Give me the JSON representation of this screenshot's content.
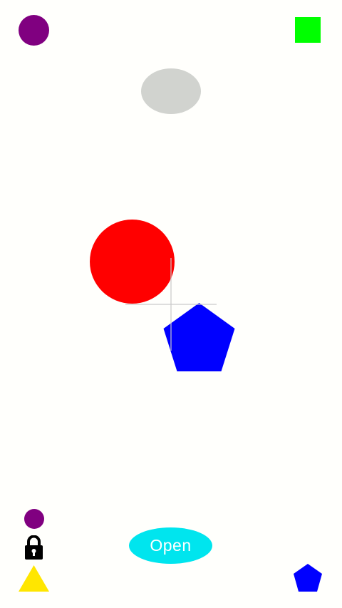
{
  "colors": {
    "background": "#fffffc",
    "purple": "#800080",
    "green": "#00ff00",
    "gray": "#d1d3cf",
    "red": "#ff0000",
    "blue": "#0000ff",
    "yellow": "#ffe600",
    "cyan": "#00e5ee",
    "black": "#000000"
  },
  "icons": {
    "lock": "lock-icon",
    "purple_circle_top": "circle-shape",
    "green_square": "square-shape",
    "gray_ellipse": "ellipse-shape",
    "red_circle": "circle-shape",
    "blue_pentagon": "pentagon-shape",
    "yellow_triangle": "triangle-shape"
  },
  "open_button": {
    "label": "Open"
  }
}
